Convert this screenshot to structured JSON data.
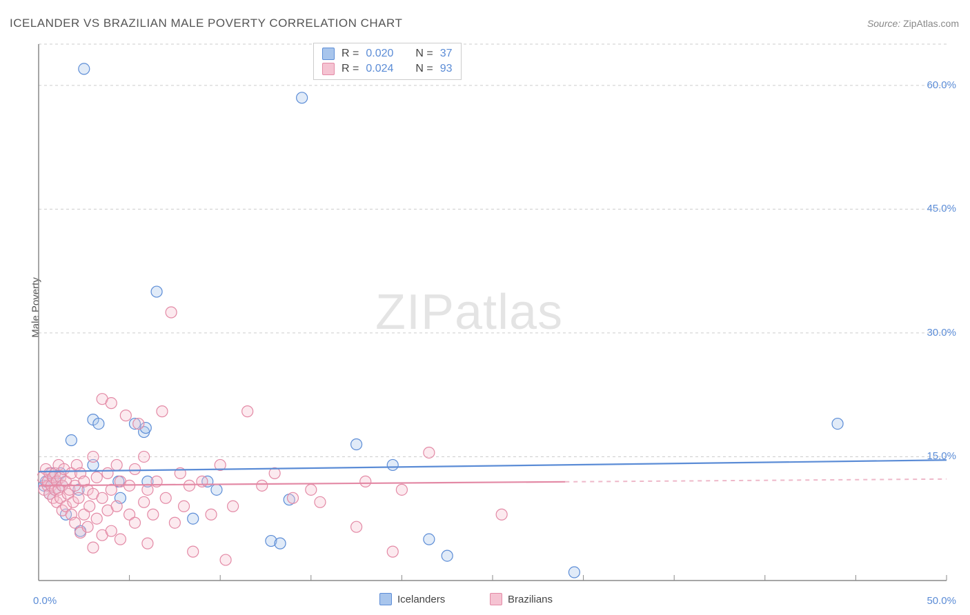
{
  "title": "ICELANDER VS BRAZILIAN MALE POVERTY CORRELATION CHART",
  "source_label": "Source:",
  "source_value": "ZipAtlas.com",
  "y_axis_label": "Male Poverty",
  "watermark_a": "ZIP",
  "watermark_b": "atlas",
  "chart": {
    "type": "scatter",
    "background_color": "#ffffff",
    "grid_color": "#cccccc",
    "axis_color": "#888888",
    "tick_label_color": "#5b8cd6",
    "xlim": [
      0,
      50
    ],
    "ylim": [
      0,
      65
    ],
    "x_ticks": [
      0,
      5,
      10,
      15,
      20,
      25,
      30,
      35,
      40,
      45,
      50
    ],
    "x_tick_labels": {
      "0": "0.0%",
      "50": "50.0%"
    },
    "y_gridlines": [
      15,
      30,
      45,
      60,
      65
    ],
    "y_tick_labels": {
      "15": "15.0%",
      "30": "30.0%",
      "45": "45.0%",
      "60": "60.0%"
    },
    "marker_radius": 8,
    "marker_stroke_width": 1.2,
    "marker_fill_opacity": 0.35,
    "series": [
      {
        "name": "Icelanders",
        "color_stroke": "#5b8cd6",
        "color_fill": "#a8c5ec",
        "R": "0.020",
        "N": "37",
        "trend": {
          "x1": 0,
          "y1": 13.2,
          "x2": 50,
          "y2": 14.6,
          "dash_from_x": null
        },
        "points": [
          [
            0.3,
            11.5
          ],
          [
            0.4,
            12.0
          ],
          [
            0.6,
            10.5
          ],
          [
            0.7,
            13.0
          ],
          [
            0.8,
            12.5
          ],
          [
            0.9,
            11.0
          ],
          [
            1.0,
            12.0
          ],
          [
            1.2,
            13.0
          ],
          [
            1.3,
            11.5
          ],
          [
            1.5,
            8.0
          ],
          [
            1.8,
            17.0
          ],
          [
            2.2,
            11.0
          ],
          [
            2.3,
            6.0
          ],
          [
            2.5,
            62.0
          ],
          [
            3.0,
            14.0
          ],
          [
            3.0,
            19.5
          ],
          [
            3.3,
            19.0
          ],
          [
            4.4,
            12.0
          ],
          [
            4.5,
            10.0
          ],
          [
            5.3,
            19.0
          ],
          [
            5.8,
            18.0
          ],
          [
            5.9,
            18.5
          ],
          [
            6.0,
            12.0
          ],
          [
            6.5,
            35.0
          ],
          [
            8.5,
            7.5
          ],
          [
            9.3,
            12.0
          ],
          [
            9.8,
            11.0
          ],
          [
            12.8,
            4.8
          ],
          [
            13.3,
            4.5
          ],
          [
            13.8,
            9.8
          ],
          [
            14.5,
            58.5
          ],
          [
            17.5,
            16.5
          ],
          [
            19.5,
            14.0
          ],
          [
            21.5,
            5.0
          ],
          [
            22.5,
            3.0
          ],
          [
            29.5,
            1.0
          ],
          [
            44.0,
            19.0
          ]
        ]
      },
      {
        "name": "Brazilians",
        "color_stroke": "#e389a5",
        "color_fill": "#f5c3d2",
        "R": "0.024",
        "N": "93",
        "trend": {
          "x1": 0,
          "y1": 11.5,
          "x2": 50,
          "y2": 12.3,
          "dash_from_x": 29
        },
        "points": [
          [
            0.2,
            12.5
          ],
          [
            0.3,
            11.0
          ],
          [
            0.4,
            13.5
          ],
          [
            0.5,
            11.5
          ],
          [
            0.5,
            12.0
          ],
          [
            0.6,
            10.5
          ],
          [
            0.6,
            13.0
          ],
          [
            0.7,
            11.5
          ],
          [
            0.8,
            10.0
          ],
          [
            0.8,
            12.5
          ],
          [
            0.9,
            11.0
          ],
          [
            0.9,
            13.0
          ],
          [
            1.0,
            9.5
          ],
          [
            1.0,
            12.0
          ],
          [
            1.1,
            11.0
          ],
          [
            1.1,
            14.0
          ],
          [
            1.2,
            10.0
          ],
          [
            1.2,
            12.5
          ],
          [
            1.3,
            8.5
          ],
          [
            1.3,
            11.5
          ],
          [
            1.4,
            13.5
          ],
          [
            1.5,
            9.0
          ],
          [
            1.5,
            12.0
          ],
          [
            1.6,
            10.5
          ],
          [
            1.7,
            11.0
          ],
          [
            1.8,
            8.0
          ],
          [
            1.8,
            13.0
          ],
          [
            1.9,
            9.5
          ],
          [
            2.0,
            7.0
          ],
          [
            2.0,
            11.5
          ],
          [
            2.1,
            14.0
          ],
          [
            2.2,
            10.0
          ],
          [
            2.3,
            5.8
          ],
          [
            2.3,
            13.0
          ],
          [
            2.5,
            8.0
          ],
          [
            2.5,
            12.0
          ],
          [
            2.7,
            6.5
          ],
          [
            2.7,
            11.0
          ],
          [
            2.8,
            9.0
          ],
          [
            3.0,
            4.0
          ],
          [
            3.0,
            10.5
          ],
          [
            3.0,
            15.0
          ],
          [
            3.2,
            7.5
          ],
          [
            3.2,
            12.5
          ],
          [
            3.5,
            5.5
          ],
          [
            3.5,
            10.0
          ],
          [
            3.5,
            22.0
          ],
          [
            3.8,
            8.5
          ],
          [
            3.8,
            13.0
          ],
          [
            4.0,
            6.0
          ],
          [
            4.0,
            11.0
          ],
          [
            4.0,
            21.5
          ],
          [
            4.3,
            9.0
          ],
          [
            4.3,
            14.0
          ],
          [
            4.5,
            5.0
          ],
          [
            4.5,
            12.0
          ],
          [
            4.8,
            20.0
          ],
          [
            5.0,
            8.0
          ],
          [
            5.0,
            11.5
          ],
          [
            5.3,
            7.0
          ],
          [
            5.3,
            13.5
          ],
          [
            5.5,
            19.0
          ],
          [
            5.8,
            9.5
          ],
          [
            5.8,
            15.0
          ],
          [
            6.0,
            4.5
          ],
          [
            6.0,
            11.0
          ],
          [
            6.3,
            8.0
          ],
          [
            6.5,
            12.0
          ],
          [
            6.8,
            20.5
          ],
          [
            7.0,
            10.0
          ],
          [
            7.3,
            32.5
          ],
          [
            7.5,
            7.0
          ],
          [
            7.8,
            13.0
          ],
          [
            8.0,
            9.0
          ],
          [
            8.3,
            11.5
          ],
          [
            8.5,
            3.5
          ],
          [
            9.0,
            12.0
          ],
          [
            9.5,
            8.0
          ],
          [
            10.0,
            14.0
          ],
          [
            10.3,
            2.5
          ],
          [
            10.7,
            9.0
          ],
          [
            11.5,
            20.5
          ],
          [
            12.3,
            11.5
          ],
          [
            13.0,
            13.0
          ],
          [
            14.0,
            10.0
          ],
          [
            15.0,
            11.0
          ],
          [
            15.5,
            9.5
          ],
          [
            17.5,
            6.5
          ],
          [
            18.0,
            12.0
          ],
          [
            19.5,
            3.5
          ],
          [
            20.0,
            11.0
          ],
          [
            21.5,
            15.5
          ],
          [
            25.5,
            8.0
          ]
        ]
      }
    ]
  },
  "bottom_legend": [
    {
      "label": "Icelanders",
      "fill": "#a8c5ec",
      "stroke": "#5b8cd6"
    },
    {
      "label": "Brazilians",
      "fill": "#f5c3d2",
      "stroke": "#e389a5"
    }
  ]
}
